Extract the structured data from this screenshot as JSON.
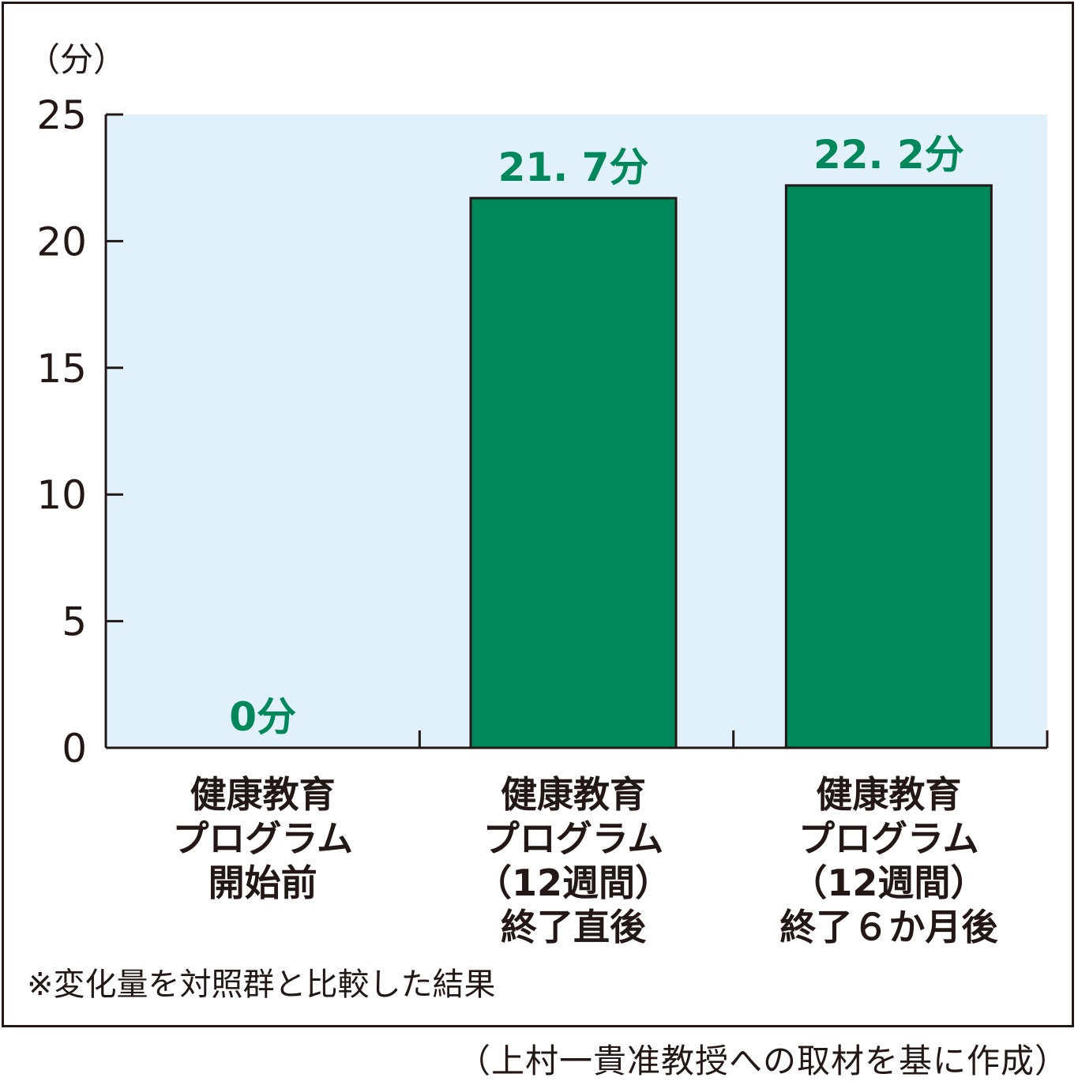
{
  "chart_data": {
    "type": "bar",
    "yunit": "（分）",
    "categories": [
      [
        "健康教育",
        "プログラム",
        "開始前"
      ],
      [
        "健康教育",
        "プログラム",
        "（12週間）",
        "終了直後"
      ],
      [
        "健康教育",
        "プログラム",
        "（12週間）",
        "終了６か月後"
      ]
    ],
    "values": [
      0,
      21.7,
      22.2
    ],
    "data_labels": [
      "0分",
      "21. 7分",
      "22. 2分"
    ],
    "ylim": [
      0,
      25
    ],
    "yticks": [
      0,
      5,
      10,
      15,
      20,
      25
    ],
    "colors": {
      "bar": "#00875a",
      "label": "#00875a",
      "plot_bg": "#e0f1fb",
      "axis": "#231815"
    },
    "grid": false,
    "legend": "none"
  },
  "footnote": "※変化量を対照群と比較した結果",
  "source": "（上村一貴准教授への取材を基に作成）"
}
